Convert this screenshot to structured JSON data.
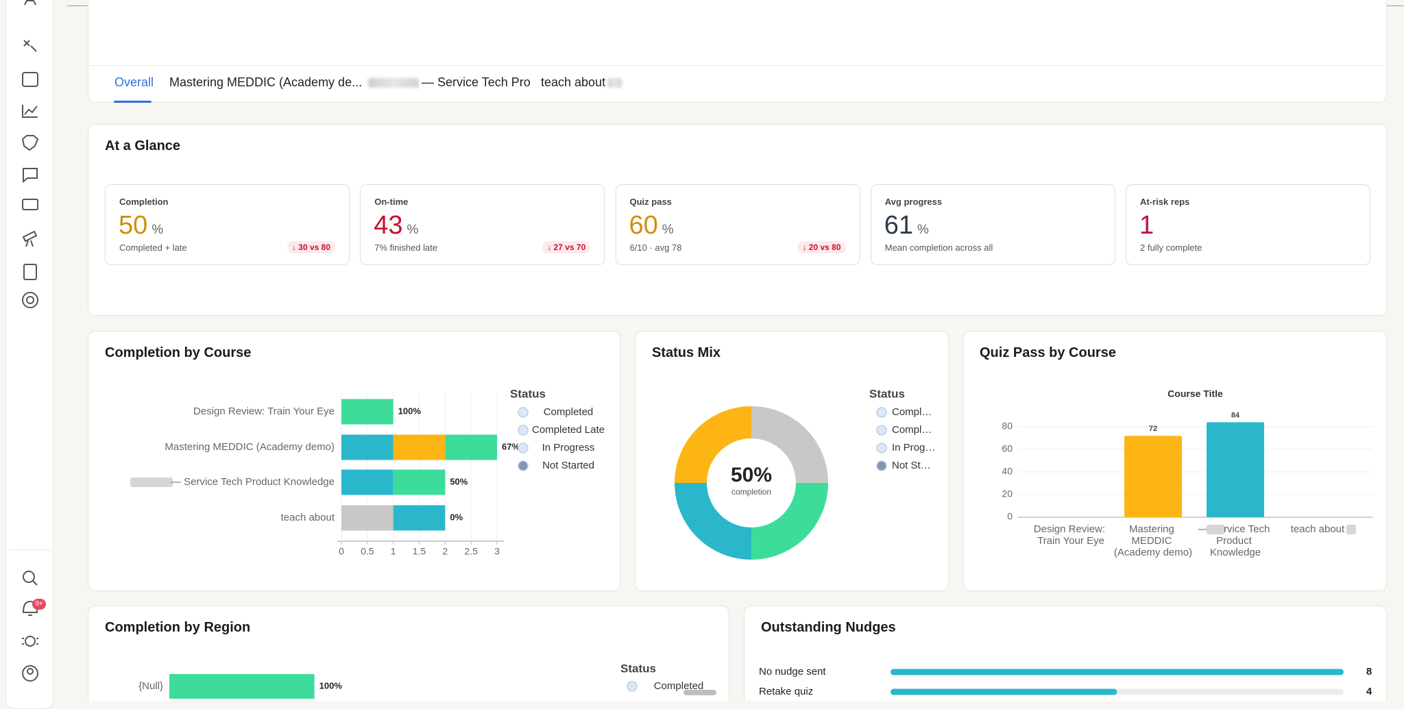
{
  "tabs": [
    "Overall",
    "Mastering MEDDIC (Academy de...",
    "— Service Tech Pro",
    "teach about"
  ],
  "sidebar": {
    "badge": "9+"
  },
  "glance": {
    "title": "At a Glance",
    "cards": [
      {
        "label": "Completion",
        "value": 50,
        "unit": "%",
        "note": "Completed + late",
        "delta": "↓ 30 vs 80",
        "color": "#d18f0c"
      },
      {
        "label": "On-time",
        "value": 43,
        "unit": "%",
        "note": "7% finished late",
        "delta": "↓ 27 vs 70",
        "color": "#c8102e"
      },
      {
        "label": "Quiz pass",
        "value": 60,
        "unit": "%",
        "note": "6/10 · avg 78",
        "delta": "↓ 20 vs 80",
        "color": "#d18f0c"
      },
      {
        "label": "Avg progress",
        "value": 61,
        "unit": "%",
        "note": "Mean completion across all",
        "color": "#2d3a4a"
      },
      {
        "label": "At-risk reps",
        "value": 1,
        "note": "2 fully complete",
        "color": "#c0104a"
      }
    ]
  },
  "chart_data": [
    {
      "type": "bar",
      "orientation": "horizontal",
      "stacked": true,
      "title": "Completion by Course",
      "categories": [
        "Design Review: Train Your Eye",
        "Mastering MEDDIC (Academy demo)",
        "— Service Tech Product Knowledge",
        "teach about"
      ],
      "series": [
        {
          "name": "Completed",
          "color": "#3ddc9b",
          "values": [
            1,
            1,
            1,
            0
          ]
        },
        {
          "name": "Completed Late",
          "color": "#fdb515",
          "values": [
            0,
            1,
            0,
            0
          ]
        },
        {
          "name": "In Progress",
          "color": "#2bb7cb",
          "values": [
            0,
            1,
            1,
            1
          ]
        },
        {
          "name": "Not Started",
          "color": "#c9c8c6",
          "values": [
            0,
            0,
            0,
            1
          ]
        }
      ],
      "data_labels": {
        "values": [
          100,
          67,
          50,
          0
        ],
        "value_labels": [
          "100%",
          "67%",
          "50%",
          "0%"
        ]
      },
      "xlim": [
        0,
        3
      ],
      "xticks": [
        0,
        0.5,
        1,
        1.5,
        2,
        2.5,
        3
      ],
      "grid": true,
      "legend_title": "Status"
    },
    {
      "type": "donut",
      "title": "Status Mix",
      "categories": [
        "Compl…",
        "Compl…",
        "In Prog…",
        "Not St…"
      ],
      "values": [
        25,
        25,
        25,
        25
      ],
      "colors": [
        "#3ddc9b",
        "#fdb515",
        "#2bb7cb",
        "#c9c8c6"
      ],
      "center_text": "50%",
      "center_caption": "completion",
      "legend_title": "Status"
    },
    {
      "type": "bar",
      "title": "Quiz Pass by Course",
      "subtitle": "Course Title",
      "categories": [
        "Design Review: Train Your Eye",
        "Mastering MEDDIC (Academy demo)",
        "— Service Tech Product Knowledge",
        "teach about"
      ],
      "values": [
        null,
        72,
        84,
        null
      ],
      "colors": [
        null,
        "#fdb515",
        "#2bb7cb",
        null
      ],
      "ylim": [
        0,
        90
      ],
      "yticks": [
        0,
        20,
        40,
        60,
        80
      ],
      "grid": true
    },
    {
      "type": "bar",
      "orientation": "horizontal",
      "stacked": true,
      "title": "Completion by Region",
      "categories": [
        "{Null}"
      ],
      "series": [
        {
          "name": "Completed",
          "color": "#3ddc9b",
          "values": [
            1
          ]
        }
      ],
      "data_labels": {
        "values": [
          100
        ],
        "value_labels": [
          "100%"
        ]
      },
      "xlim": [
        0,
        3
      ],
      "legend_title": "Status"
    },
    {
      "type": "bar",
      "orientation": "horizontal",
      "title": "Outstanding Nudges",
      "categories": [
        "No nudge sent",
        "Retake quiz"
      ],
      "values": [
        8,
        4
      ],
      "color": "#2bb7cb",
      "xlim": [
        0,
        8
      ]
    }
  ]
}
